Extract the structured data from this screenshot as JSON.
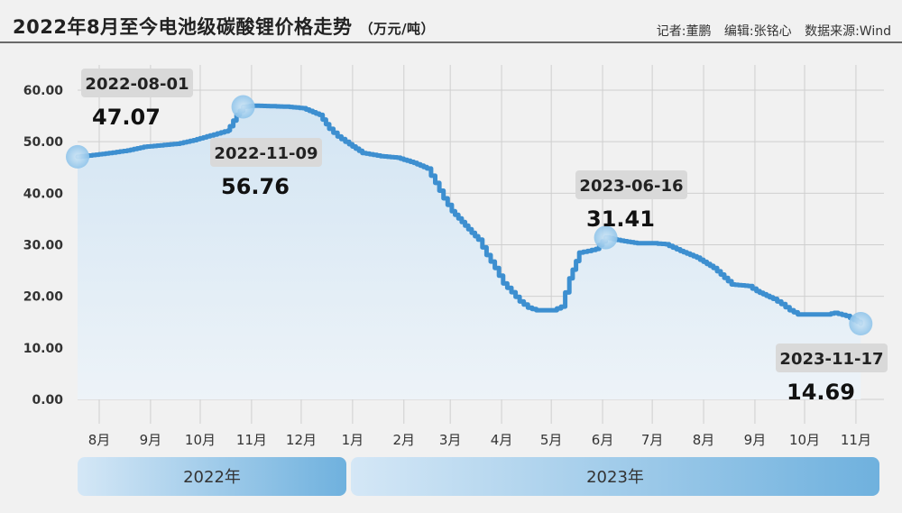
{
  "header": {
    "title": "2022年8月至今电池级碳酸锂价格走势",
    "unit": "（万元/吨）",
    "reporter": "记者:董鹏",
    "editor": "编辑:张铭心",
    "source": "数据来源:Wind"
  },
  "colors": {
    "line": "#3d8fd0",
    "area_top": "#d3e5f3",
    "area_bottom": "#edf3f8",
    "grid": "#cfcfcf",
    "callout_bg": "#d9d9d9",
    "year_band_light": "#d4e7f6",
    "year_band_dark": "#6fb1de"
  },
  "chart_data": {
    "type": "line",
    "title": "2022年8月至今电池级碳酸锂价格走势",
    "ylabel": "万元/吨",
    "ylim": [
      0,
      60
    ],
    "yticks": [
      "0.00",
      "10.00",
      "20.00",
      "30.00",
      "40.00",
      "50.00",
      "60.00"
    ],
    "xlim": [
      "2022-08-01",
      "2023-12-01"
    ],
    "month_labels": [
      {
        "date": "2022-08-01",
        "label": "8月"
      },
      {
        "date": "2022-09-01",
        "label": "9月"
      },
      {
        "date": "2022-10-01",
        "label": "10月"
      },
      {
        "date": "2022-11-01",
        "label": "11月"
      },
      {
        "date": "2022-12-01",
        "label": "12月"
      },
      {
        "date": "2023-01-01",
        "label": "1月"
      },
      {
        "date": "2023-02-01",
        "label": "2月"
      },
      {
        "date": "2023-03-01",
        "label": "3月"
      },
      {
        "date": "2023-04-01",
        "label": "4月"
      },
      {
        "date": "2023-05-01",
        "label": "5月"
      },
      {
        "date": "2023-06-01",
        "label": "6月"
      },
      {
        "date": "2023-07-01",
        "label": "7月"
      },
      {
        "date": "2023-08-01",
        "label": "8月"
      },
      {
        "date": "2023-09-01",
        "label": "9月"
      },
      {
        "date": "2023-10-01",
        "label": "10月"
      },
      {
        "date": "2023-11-01",
        "label": "11月"
      }
    ],
    "year_bands": [
      {
        "label": "2022年",
        "start": "2022-08-01",
        "end": "2022-12-31"
      },
      {
        "label": "2023年",
        "start": "2023-01-01",
        "end": "2023-11-30"
      }
    ],
    "grid": true,
    "series": [
      {
        "points": [
          [
            "2022-08-01",
            47.07
          ],
          [
            "2022-08-10",
            47.4
          ],
          [
            "2022-08-20",
            47.8
          ],
          [
            "2022-08-31",
            48.3
          ],
          [
            "2022-09-10",
            49.0
          ],
          [
            "2022-09-20",
            49.3
          ],
          [
            "2022-09-30",
            49.6
          ],
          [
            "2022-10-10",
            50.3
          ],
          [
            "2022-10-20",
            51.2
          ],
          [
            "2022-10-31",
            52.2
          ],
          [
            "2022-11-01",
            53.0
          ],
          [
            "2022-11-05",
            55.2
          ],
          [
            "2022-11-09",
            56.76
          ],
          [
            "2022-11-15",
            57.0
          ],
          [
            "2022-11-25",
            56.9
          ],
          [
            "2022-12-05",
            56.8
          ],
          [
            "2022-12-15",
            56.5
          ],
          [
            "2022-12-25",
            55.2
          ],
          [
            "2022-12-31",
            52.5
          ],
          [
            "2023-01-05",
            51.0
          ],
          [
            "2023-01-12",
            49.5
          ],
          [
            "2023-01-20",
            47.8
          ],
          [
            "2023-01-31",
            47.2
          ],
          [
            "2023-02-10",
            46.9
          ],
          [
            "2023-02-20",
            45.9
          ],
          [
            "2023-02-28",
            44.8
          ],
          [
            "2023-03-05",
            42.0
          ],
          [
            "2023-03-10",
            39.0
          ],
          [
            "2023-03-15",
            36.5
          ],
          [
            "2023-03-25",
            33.0
          ],
          [
            "2023-03-31",
            31.0
          ],
          [
            "2023-04-05",
            28.0
          ],
          [
            "2023-04-10",
            25.5
          ],
          [
            "2023-04-15",
            22.5
          ],
          [
            "2023-04-20",
            20.8
          ],
          [
            "2023-04-25",
            19.0
          ],
          [
            "2023-04-30",
            17.8
          ],
          [
            "2023-05-05",
            17.3
          ],
          [
            "2023-05-15",
            17.3
          ],
          [
            "2023-05-20",
            18.0
          ],
          [
            "2023-05-25",
            23.5
          ],
          [
            "2023-05-31",
            28.5
          ],
          [
            "2023-06-05",
            28.8
          ],
          [
            "2023-06-10",
            29.2
          ],
          [
            "2023-06-16",
            31.41
          ],
          [
            "2023-06-25",
            30.8
          ],
          [
            "2023-07-05",
            30.3
          ],
          [
            "2023-07-15",
            30.3
          ],
          [
            "2023-07-22",
            30.1
          ],
          [
            "2023-07-31",
            28.8
          ],
          [
            "2023-08-10",
            27.5
          ],
          [
            "2023-08-20",
            25.5
          ],
          [
            "2023-08-31",
            22.3
          ],
          [
            "2023-09-10",
            22.0
          ],
          [
            "2023-09-15",
            21.0
          ],
          [
            "2023-09-25",
            19.5
          ],
          [
            "2023-09-30",
            18.5
          ],
          [
            "2023-10-05",
            17.3
          ],
          [
            "2023-10-10",
            16.5
          ],
          [
            "2023-10-20",
            16.5
          ],
          [
            "2023-10-28",
            16.5
          ],
          [
            "2023-11-01",
            16.8
          ],
          [
            "2023-11-08",
            16.2
          ],
          [
            "2023-11-13",
            15.4
          ],
          [
            "2023-11-17",
            14.69
          ]
        ]
      }
    ],
    "annotations": [
      {
        "date": "2022-08-01",
        "value_label": "47.07",
        "date_label": "2022-08-01",
        "label_pos": "above"
      },
      {
        "date": "2022-11-09",
        "value_label": "56.76",
        "date_label": "2022-11-09",
        "label_pos": "below"
      },
      {
        "date": "2023-06-16",
        "value_label": "31.41",
        "date_label": "2023-06-16",
        "label_pos": "above"
      },
      {
        "date": "2023-11-17",
        "value_label": "14.69",
        "date_label": "2023-11-17",
        "label_pos": "below"
      }
    ]
  }
}
